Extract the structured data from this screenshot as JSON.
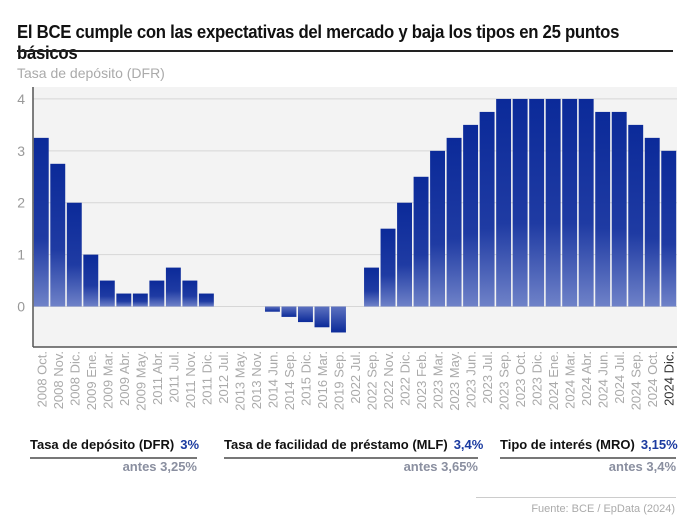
{
  "title": "El BCE cumple con las expectativas del mercado y baja los tipos en 25 puntos básicos",
  "chart_data": {
    "type": "bar",
    "ylabel": "Tasa de depósito (DFR)",
    "ylim": [
      -0.78,
      4.23
    ],
    "yticks": [
      0,
      1,
      2,
      3,
      4
    ],
    "grid": true,
    "bar_color": "#0b2a99",
    "categories": [
      "2008 Oct.",
      "2008 Nov.",
      "2008 Dic.",
      "2009 Ene.",
      "2009 Mar.",
      "2009 Abr.",
      "2009 May.",
      "2011 Abr.",
      "2011 Jul.",
      "2011 Nov.",
      "2011 Dic.",
      "2012 Jul.",
      "2013 May.",
      "2013 Nov.",
      "2014 Jun.",
      "2014 Sep.",
      "2015 Dic.",
      "2016 Mar.",
      "2019 Sep.",
      "2022 Jul.",
      "2022 Sep.",
      "2022 Nov.",
      "2022 Dic.",
      "2023 Feb.",
      "2023 Mar.",
      "2023 May.",
      "2023 Jun.",
      "2023 Jul.",
      "2023 Sep.",
      "2023 Oct.",
      "2023 Dic.",
      "2024 Ene.",
      "2024 Mar.",
      "2024 Abr.",
      "2024 Jun.",
      "2024 Jul.",
      "2024 Sep.",
      "2024 Oct.",
      "2024 Dic."
    ],
    "values": [
      3.25,
      2.75,
      2.0,
      1.0,
      0.5,
      0.25,
      0.25,
      0.5,
      0.75,
      0.5,
      0.25,
      0,
      0,
      0,
      -0.1,
      -0.2,
      -0.3,
      -0.4,
      -0.5,
      0,
      0.75,
      1.5,
      2.0,
      2.5,
      3.0,
      3.25,
      3.5,
      3.75,
      4,
      4,
      4,
      4,
      4,
      4,
      3.75,
      3.75,
      3.5,
      3.25,
      3.0
    ]
  },
  "stats": [
    {
      "label": "Tasa de depósito (DFR)",
      "value": "3%",
      "before": "antes 3,25%"
    },
    {
      "label": "Tasa de facilidad de préstamo (MLF)",
      "value": "3,4%",
      "before": "antes 3,65%"
    },
    {
      "label": "Tipo de interés (MRO)",
      "value": "3,15%",
      "before": "antes 3,4%"
    }
  ],
  "source": "Fuente: BCE / EpData (2024)"
}
